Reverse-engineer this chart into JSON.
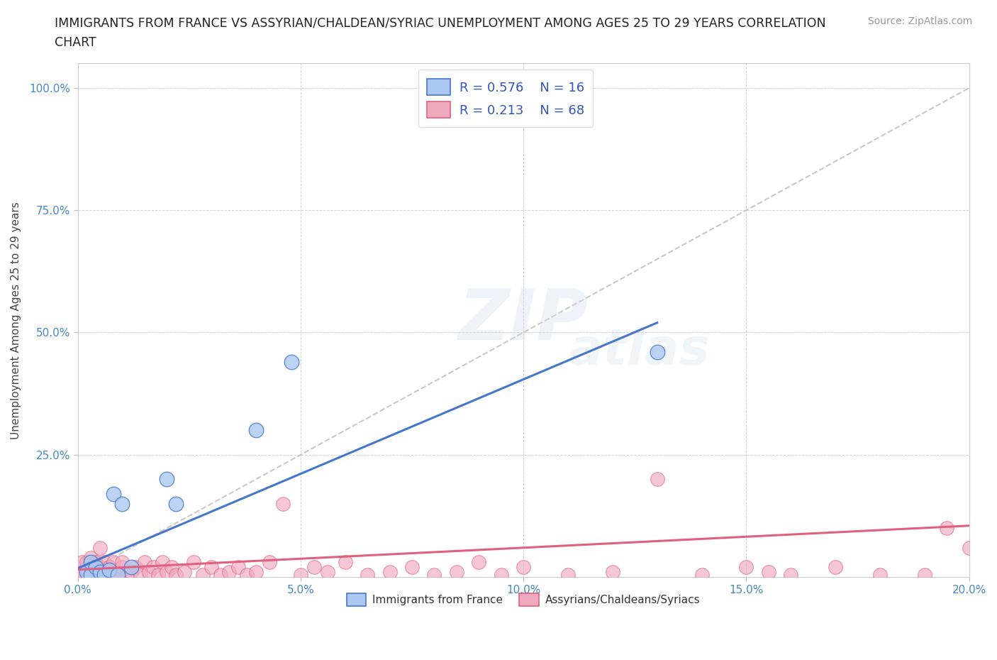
{
  "title": "IMMIGRANTS FROM FRANCE VS ASSYRIAN/CHALDEAN/SYRIAC UNEMPLOYMENT AMONG AGES 25 TO 29 YEARS CORRELATION\nCHART",
  "source_text": "Source: ZipAtlas.com",
  "xlabel": "",
  "ylabel": "Unemployment Among Ages 25 to 29 years",
  "xlim": [
    0.0,
    0.2
  ],
  "ylim": [
    0.0,
    1.05
  ],
  "xtick_labels": [
    "0.0%",
    "5.0%",
    "10.0%",
    "15.0%",
    "20.0%"
  ],
  "xtick_vals": [
    0.0,
    0.05,
    0.1,
    0.15,
    0.2
  ],
  "ytick_labels": [
    "25.0%",
    "50.0%",
    "75.0%",
    "100.0%"
  ],
  "ytick_vals": [
    0.25,
    0.5,
    0.75,
    1.0
  ],
  "background_color": "#ffffff",
  "grid_color": "#c8c8c8",
  "watermark": "ZIPatlas",
  "legend_R1": "0.576",
  "legend_N1": "16",
  "legend_R2": "0.213",
  "legend_N2": "68",
  "color_france": "#adc8f0",
  "color_assyrian": "#f0aac0",
  "color_france_line": "#4477cc",
  "color_assyrian_line": "#e06080",
  "color_diagonal": "#bbbbbb",
  "france_x": [
    0.002,
    0.003,
    0.003,
    0.004,
    0.005,
    0.006,
    0.007,
    0.008,
    0.009,
    0.01,
    0.012,
    0.02,
    0.022,
    0.04,
    0.048,
    0.13
  ],
  "france_y": [
    0.01,
    0.005,
    0.03,
    0.02,
    0.01,
    0.005,
    0.015,
    0.17,
    0.005,
    0.15,
    0.02,
    0.2,
    0.15,
    0.3,
    0.44,
    0.46
  ],
  "assyrian_x": [
    0.001,
    0.001,
    0.002,
    0.002,
    0.003,
    0.003,
    0.003,
    0.004,
    0.004,
    0.005,
    0.005,
    0.005,
    0.006,
    0.006,
    0.007,
    0.007,
    0.008,
    0.008,
    0.009,
    0.01,
    0.01,
    0.011,
    0.012,
    0.013,
    0.014,
    0.015,
    0.016,
    0.017,
    0.018,
    0.019,
    0.02,
    0.021,
    0.022,
    0.024,
    0.026,
    0.028,
    0.03,
    0.032,
    0.034,
    0.036,
    0.038,
    0.04,
    0.043,
    0.046,
    0.05,
    0.053,
    0.056,
    0.06,
    0.065,
    0.07,
    0.075,
    0.08,
    0.085,
    0.09,
    0.095,
    0.1,
    0.11,
    0.12,
    0.13,
    0.14,
    0.15,
    0.155,
    0.16,
    0.17,
    0.18,
    0.19,
    0.195,
    0.2
  ],
  "assyrian_y": [
    0.01,
    0.03,
    0.01,
    0.03,
    0.005,
    0.02,
    0.04,
    0.01,
    0.03,
    0.005,
    0.02,
    0.06,
    0.01,
    0.03,
    0.005,
    0.02,
    0.01,
    0.03,
    0.005,
    0.02,
    0.03,
    0.005,
    0.01,
    0.02,
    0.005,
    0.03,
    0.01,
    0.02,
    0.005,
    0.03,
    0.01,
    0.02,
    0.005,
    0.01,
    0.03,
    0.005,
    0.02,
    0.005,
    0.01,
    0.02,
    0.005,
    0.01,
    0.03,
    0.15,
    0.005,
    0.02,
    0.01,
    0.03,
    0.005,
    0.01,
    0.02,
    0.005,
    0.01,
    0.03,
    0.005,
    0.02,
    0.005,
    0.01,
    0.2,
    0.005,
    0.02,
    0.01,
    0.005,
    0.02,
    0.005,
    0.005,
    0.1,
    0.06
  ],
  "france_line_x": [
    0.0,
    0.13
  ],
  "france_line_y": [
    0.018,
    0.52
  ],
  "assyrian_line_x": [
    0.0,
    0.2
  ],
  "assyrian_line_y": [
    0.015,
    0.105
  ]
}
